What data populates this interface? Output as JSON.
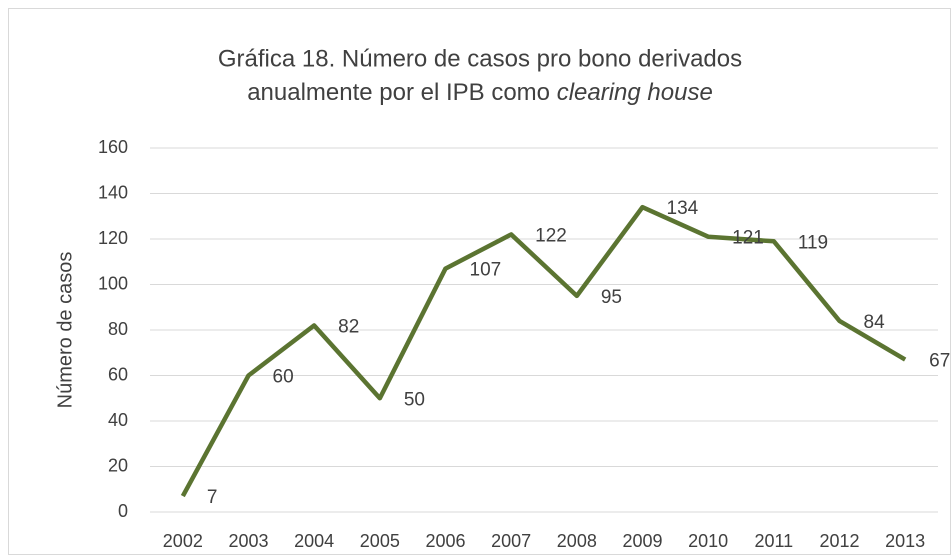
{
  "chart_data": {
    "type": "line",
    "title": [
      "Gráfica 18. Número de casos pro bono derivados",
      "anualmente por el IPB como",
      "clearing house"
    ],
    "y_label": "Número de casos",
    "categories": [
      "2002",
      "2003",
      "2004",
      "2005",
      "2006",
      "2007",
      "2008",
      "2009",
      "2010",
      "2011",
      "2012",
      "2013"
    ],
    "series": [
      {
        "name": "Número de casos",
        "color": "#5b7431",
        "values": [
          7,
          60,
          82,
          50,
          107,
          122,
          95,
          134,
          121,
          119,
          84,
          67
        ]
      }
    ],
    "ylim": [
      0,
      160
    ],
    "yticks": [
      0,
      20,
      40,
      60,
      80,
      100,
      120,
      140,
      160
    ],
    "grid": true,
    "data_labels": true
  }
}
